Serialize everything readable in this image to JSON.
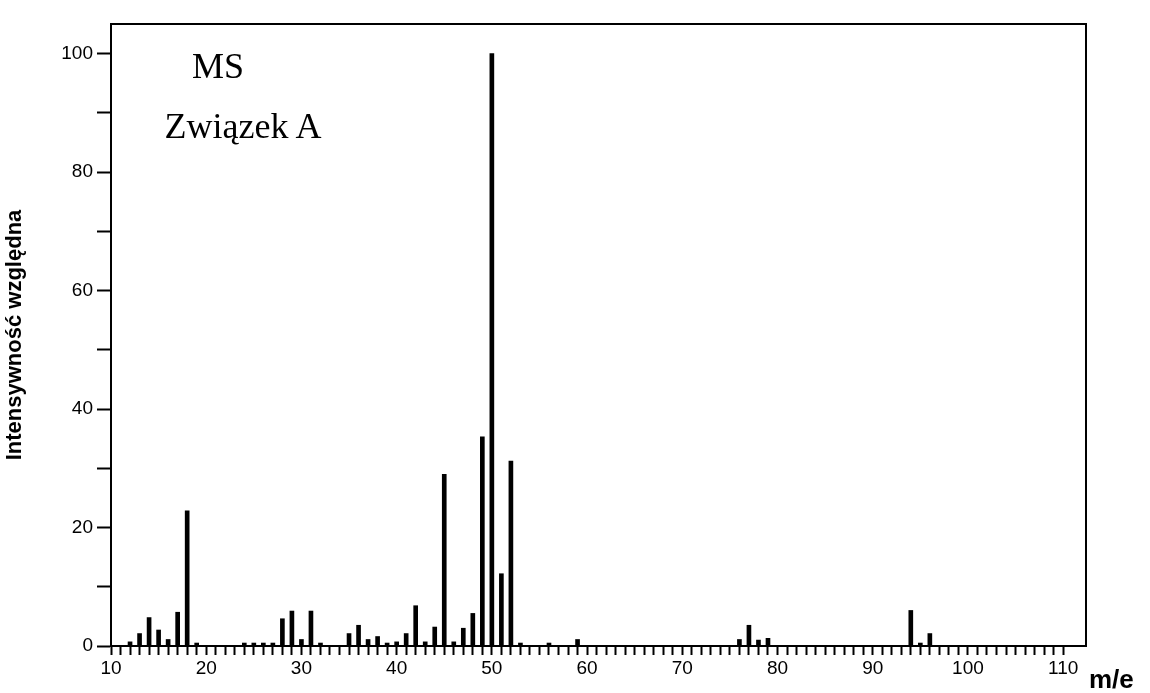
{
  "chart_data": {
    "type": "bar",
    "xlabel": "m/e",
    "ylabel": "Intensywność względna",
    "annotations": [
      "MS",
      "Związek A"
    ],
    "x": [
      12,
      13,
      14,
      15,
      16,
      17,
      18,
      19,
      24,
      25,
      26,
      27,
      28,
      29,
      30,
      31,
      32,
      35,
      36,
      37,
      38,
      39,
      40,
      41,
      42,
      43,
      44,
      45,
      46,
      47,
      48,
      49,
      50,
      51,
      52,
      53,
      56,
      59,
      76,
      77,
      78,
      79,
      94,
      95,
      96
    ],
    "values": [
      0.7,
      2.1,
      4.8,
      2.7,
      1.1,
      5.7,
      22.8,
      0.5,
      0.5,
      0.5,
      0.5,
      0.5,
      4.6,
      5.9,
      1.1,
      5.9,
      0.5,
      2.1,
      3.5,
      1.1,
      1.6,
      0.5,
      0.7,
      2.1,
      6.8,
      0.7,
      3.2,
      29,
      0.7,
      3,
      5.5,
      35.3,
      100,
      12.2,
      31.2,
      0.5,
      0.5,
      1.1,
      1.1,
      3.5,
      1,
      1.3,
      6,
      0.5,
      2.1
    ],
    "color": "#000000",
    "grid": false,
    "legend": false,
    "xlim": [
      10,
      112.4
    ],
    "ylim": [
      0,
      105
    ],
    "xticks": [
      10,
      {
        "value": 11,
        "label": null
      },
      {
        "value": 12,
        "label": null
      },
      {
        "value": 13,
        "label": null
      },
      {
        "value": 14,
        "label": null
      },
      {
        "value": 15,
        "label": null
      },
      {
        "value": 16,
        "label": null
      },
      {
        "value": 17,
        "label": null
      },
      {
        "value": 18,
        "label": null
      },
      {
        "value": 19,
        "label": null
      },
      20,
      {
        "value": 21,
        "label": null
      },
      {
        "value": 22,
        "label": null
      },
      {
        "value": 23,
        "label": null
      },
      {
        "value": 24,
        "label": null
      },
      {
        "value": 25,
        "label": null
      },
      {
        "value": 26,
        "label": null
      },
      {
        "value": 27,
        "label": null
      },
      {
        "value": 28,
        "label": null
      },
      {
        "value": 29,
        "label": null
      },
      30,
      {
        "value": 31,
        "label": null
      },
      {
        "value": 32,
        "label": null
      },
      {
        "value": 33,
        "label": null
      },
      {
        "value": 34,
        "label": null
      },
      {
        "value": 35,
        "label": null
      },
      {
        "value": 36,
        "label": null
      },
      {
        "value": 37,
        "label": null
      },
      {
        "value": 38,
        "label": null
      },
      {
        "value": 39,
        "label": null
      },
      40,
      {
        "value": 41,
        "label": null
      },
      {
        "value": 42,
        "label": null
      },
      {
        "value": 43,
        "label": null
      },
      {
        "value": 44,
        "label": null
      },
      {
        "value": 45,
        "label": null
      },
      {
        "value": 46,
        "label": null
      },
      {
        "value": 47,
        "label": null
      },
      {
        "value": 48,
        "label": null
      },
      {
        "value": 49,
        "label": null
      },
      50,
      {
        "value": 51,
        "label": null
      },
      {
        "value": 52,
        "label": null
      },
      {
        "value": 53,
        "label": null
      },
      {
        "value": 54,
        "label": null
      },
      {
        "value": 55,
        "label": null
      },
      {
        "value": 56,
        "label": null
      },
      {
        "value": 57,
        "label": null
      },
      {
        "value": 58,
        "label": null
      },
      {
        "value": 59,
        "label": null
      },
      60,
      {
        "value": 61,
        "label": null
      },
      {
        "value": 62,
        "label": null
      },
      {
        "value": 63,
        "label": null
      },
      {
        "value": 64,
        "label": null
      },
      {
        "value": 65,
        "label": null
      },
      {
        "value": 66,
        "label": null
      },
      {
        "value": 67,
        "label": null
      },
      {
        "value": 68,
        "label": null
      },
      {
        "value": 69,
        "label": null
      },
      70,
      {
        "value": 71,
        "label": null
      },
      {
        "value": 72,
        "label": null
      },
      {
        "value": 73,
        "label": null
      },
      {
        "value": 74,
        "label": null
      },
      {
        "value": 75,
        "label": null
      },
      {
        "value": 76,
        "label": null
      },
      {
        "value": 77,
        "label": null
      },
      {
        "value": 78,
        "label": null
      },
      {
        "value": 79,
        "label": null
      },
      80,
      {
        "value": 81,
        "label": null
      },
      {
        "value": 82,
        "label": null
      },
      {
        "value": 83,
        "label": null
      },
      {
        "value": 84,
        "label": null
      },
      {
        "value": 85,
        "label": null
      },
      {
        "value": 86,
        "label": null
      },
      {
        "value": 87,
        "label": null
      },
      {
        "value": 88,
        "label": null
      },
      {
        "value": 89,
        "label": null
      },
      90,
      {
        "value": 91,
        "label": null
      },
      {
        "value": 92,
        "label": null
      },
      {
        "value": 93,
        "label": null
      },
      {
        "value": 94,
        "label": null
      },
      {
        "value": 95,
        "label": null
      },
      {
        "value": 96,
        "label": null
      },
      {
        "value": 97,
        "label": null
      },
      {
        "value": 98,
        "label": null
      },
      {
        "value": 99,
        "label": null
      },
      100,
      {
        "value": 101,
        "label": null
      },
      {
        "value": 102,
        "label": null
      },
      {
        "value": 103,
        "label": null
      },
      {
        "value": 104,
        "label": null
      },
      {
        "value": 105,
        "label": null
      },
      {
        "value": 106,
        "label": null
      },
      {
        "value": 107,
        "label": null
      },
      {
        "value": 108,
        "label": null
      },
      {
        "value": 109,
        "label": null
      },
      110
    ],
    "yticks": [
      0,
      {
        "value": 10,
        "label": null
      },
      20,
      {
        "value": 30,
        "label": null
      },
      40,
      {
        "value": 50,
        "label": null
      },
      60,
      {
        "value": 70,
        "label": null
      },
      80,
      {
        "value": 90,
        "label": null
      },
      100
    ]
  }
}
